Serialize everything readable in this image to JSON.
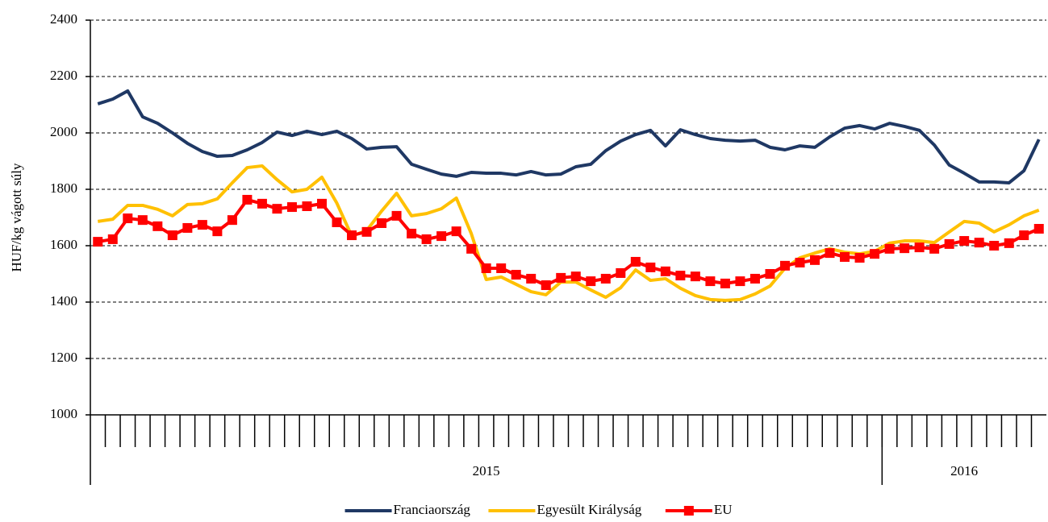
{
  "chart_data": {
    "type": "line",
    "y_label": "HUF/kg vágott súly",
    "categories": [
      null,
      null,
      null,
      null,
      null,
      null,
      null,
      null,
      null,
      null,
      null,
      null,
      null,
      null,
      null,
      null,
      null,
      null,
      null,
      null,
      null,
      null,
      null,
      null,
      null,
      null,
      null,
      null,
      null,
      null,
      null,
      null,
      null,
      null,
      null,
      null,
      null,
      null,
      null,
      null,
      null,
      null,
      null,
      null,
      null,
      null,
      null,
      null,
      null,
      null,
      null,
      null,
      null,
      null,
      null,
      null,
      null,
      null,
      null,
      null,
      null,
      null,
      null,
      null
    ],
    "year_groups": [
      {
        "label": "2015",
        "weeks": 53
      },
      {
        "label": "2016",
        "weeks": 11
      }
    ],
    "ylim": [
      1000,
      2400
    ],
    "yticks": [
      1000,
      1200,
      1400,
      1600,
      1800,
      2000,
      2200,
      2400
    ],
    "grid": true,
    "legend": "bottom",
    "series": [
      {
        "name": "Franciaország",
        "color": "#1f3864",
        "marker": false,
        "values": [
          2103,
          2120,
          2149,
          2057,
          2034,
          2000,
          1963,
          1934,
          1917,
          1920,
          1940,
          1966,
          2003,
          1991,
          2006,
          1994,
          2006,
          1980,
          1943,
          1949,
          1951,
          1889,
          1871,
          1854,
          1846,
          1860,
          1857,
          1857,
          1851,
          1863,
          1851,
          1854,
          1880,
          1889,
          1937,
          1971,
          1994,
          2009,
          1954,
          2011,
          1994,
          1980,
          1974,
          1971,
          1974,
          1949,
          1940,
          1954,
          1949,
          1986,
          2017,
          2026,
          2014,
          2034,
          2023,
          2009,
          1957,
          1886,
          1857,
          1826,
          1826,
          1823,
          1866,
          1977
        ]
      },
      {
        "name": "Egyesült Királyság",
        "color": "#ffc000",
        "marker": false,
        "values": [
          1686,
          1694,
          1743,
          1743,
          1729,
          1706,
          1746,
          1749,
          1766,
          1823,
          1877,
          1883,
          1834,
          1791,
          1800,
          1843,
          1751,
          1634,
          1654,
          1723,
          1786,
          1706,
          1714,
          1731,
          1769,
          1643,
          1480,
          1489,
          1463,
          1437,
          1426,
          1471,
          1471,
          1443,
          1417,
          1451,
          1514,
          1477,
          1483,
          1449,
          1423,
          1409,
          1406,
          1409,
          1429,
          1457,
          1520,
          1557,
          1574,
          1589,
          1577,
          1571,
          1580,
          1609,
          1617,
          1617,
          1611,
          1649,
          1686,
          1680,
          1649,
          1674,
          1706,
          1726
        ]
      },
      {
        "name": "EU",
        "color": "#ff0000",
        "marker": true,
        "values": [
          1614,
          1623,
          1697,
          1691,
          1669,
          1637,
          1663,
          1674,
          1651,
          1691,
          1763,
          1749,
          1731,
          1737,
          1740,
          1749,
          1683,
          1637,
          1649,
          1680,
          1706,
          1643,
          1623,
          1634,
          1651,
          1589,
          1520,
          1520,
          1497,
          1483,
          1460,
          1486,
          1491,
          1474,
          1483,
          1503,
          1543,
          1523,
          1509,
          1494,
          1491,
          1474,
          1466,
          1474,
          1483,
          1500,
          1529,
          1540,
          1549,
          1574,
          1560,
          1557,
          1571,
          1589,
          1591,
          1594,
          1589,
          1606,
          1617,
          1611,
          1600,
          1609,
          1637,
          1660
        ]
      }
    ]
  }
}
